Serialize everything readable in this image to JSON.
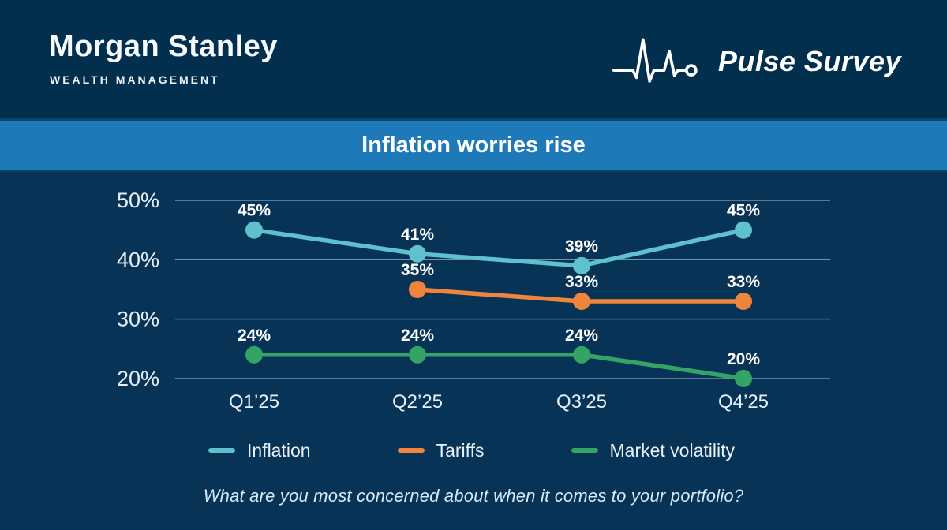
{
  "header": {
    "brand": "Morgan Stanley",
    "brand_sub": "WEALTH MANAGEMENT",
    "program": "Pulse Survey"
  },
  "banner": {
    "title": "Inflation worries rise"
  },
  "chart_data": {
    "type": "line",
    "title": "Inflation worries rise",
    "xlabel": "",
    "ylabel": "",
    "categories": [
      "Q1’25",
      "Q2’25",
      "Q3’25",
      "Q4’25"
    ],
    "series": [
      {
        "name": "Inflation",
        "color": "#5fc0ce",
        "values": [
          45,
          41,
          39,
          45
        ]
      },
      {
        "name": "Tariffs",
        "color": "#ef843c",
        "values": [
          null,
          35,
          33,
          33
        ]
      },
      {
        "name": "Market volatility",
        "color": "#33a366",
        "values": [
          24,
          24,
          24,
          20
        ]
      }
    ],
    "y_ticks": [
      50,
      40,
      30,
      20
    ],
    "y_tick_suffix": "%",
    "value_label_suffix": "%",
    "ylim": [
      17,
      53
    ],
    "grid": true,
    "legend_position": "bottom"
  },
  "footer": {
    "question": "What are you most concerned about when it comes to your portfolio?"
  },
  "colors": {
    "header-bg": "#032f4e",
    "body-bg": "#073356",
    "banner-bg": "#1e79b8",
    "inflation": "#5fc0ce",
    "tariffs": "#ef843c",
    "volatility": "#33a366"
  }
}
